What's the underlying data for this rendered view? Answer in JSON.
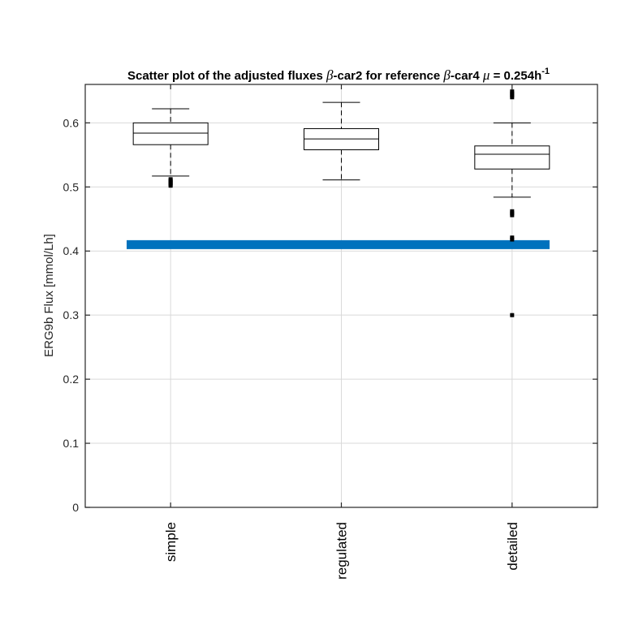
{
  "chart_data": {
    "type": "box",
    "title": {
      "prefix": "Scatter plot of the adjusted fluxes ",
      "beta1": "β",
      "mid1": "-car2 for reference ",
      "beta2": "β",
      "mid2": "-car4 ",
      "mu": "μ",
      "suffix": " = 0.254h",
      "sup": "-1"
    },
    "ylabel": "ERG9b Flux [mmol/Lh]",
    "xlabel": "",
    "ylim": [
      0,
      0.66
    ],
    "yticks": [
      0,
      0.1,
      0.2,
      0.3,
      0.4,
      0.5,
      0.6
    ],
    "ytick_labels": [
      "0",
      "0.1",
      "0.2",
      "0.3",
      "0.4",
      "0.5",
      "0.6"
    ],
    "grid": true,
    "categories": [
      "simple",
      "regulated",
      "detailed"
    ],
    "boxes": [
      {
        "q1": 0.566,
        "median": 0.584,
        "q3": 0.6,
        "whisker_low": 0.517,
        "whisker_high": 0.622,
        "outliers": [
          0.502,
          0.504,
          0.506,
          0.508,
          0.51,
          0.512
        ]
      },
      {
        "q1": 0.558,
        "median": 0.575,
        "q3": 0.591,
        "whisker_low": 0.511,
        "whisker_high": 0.632,
        "outliers": []
      },
      {
        "q1": 0.528,
        "median": 0.551,
        "q3": 0.564,
        "whisker_low": 0.484,
        "whisker_high": 0.6,
        "outliers": [
          0.64,
          0.643,
          0.646,
          0.649,
          0.456,
          0.459,
          0.462,
          0.418,
          0.421,
          0.3
        ]
      }
    ],
    "reference_line": {
      "y": 0.41,
      "color": "#0072BD"
    },
    "colors": {
      "box": "#000000",
      "outlier": "#000000",
      "grid": "#d9d9d9",
      "axis": "#262626"
    }
  }
}
